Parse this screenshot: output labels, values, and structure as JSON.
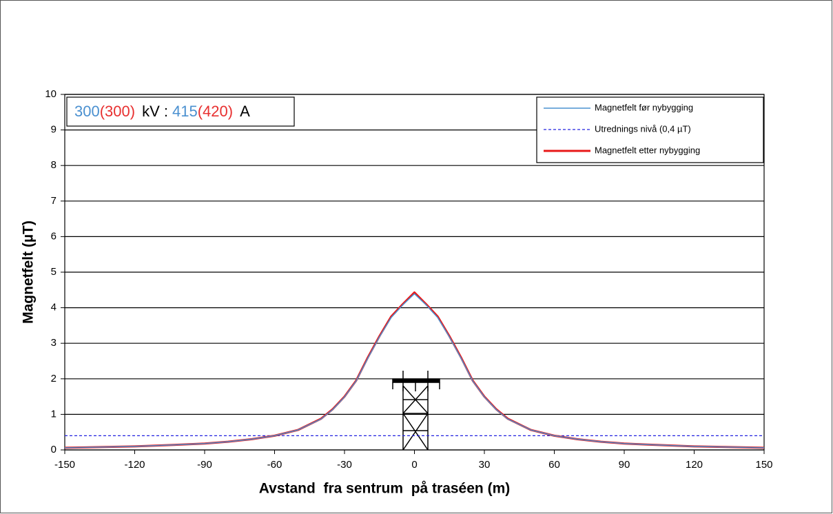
{
  "chart_data": {
    "type": "line",
    "annotation": {
      "parts": [
        {
          "text": "300",
          "color": "#4a90d0"
        },
        {
          "text": "(300)",
          "color": "#e83030"
        },
        {
          "text": "kV :",
          "color": "#000000"
        },
        {
          "text": "415",
          "color": "#4a90d0"
        },
        {
          "text": "(420)",
          "color": "#e83030"
        },
        {
          "text": "A",
          "color": "#000000"
        }
      ]
    },
    "x_label": "Avstand  fra sentrum  på traséen (m)",
    "y_label": "Magnetfelt (µT)",
    "xlim": [
      -150,
      150
    ],
    "xticks": [
      -150,
      -120,
      -90,
      -60,
      -30,
      0,
      30,
      60,
      90,
      120,
      150
    ],
    "ylim": [
      0,
      10
    ],
    "yticks": [
      0,
      1,
      2,
      3,
      4,
      5,
      6,
      7,
      8,
      9,
      10
    ],
    "grid": true,
    "legend": "upper right",
    "series": [
      {
        "name": "Magnetfelt før nybygging",
        "color": "#4a90d0",
        "width": 1.5,
        "dash": false,
        "x": [
          -150,
          -120,
          -100,
          -90,
          -80,
          -70,
          -60,
          -50,
          -40,
          -35,
          -30,
          -25,
          -20,
          -15,
          -10,
          -5,
          0,
          5,
          10,
          15,
          20,
          25,
          30,
          35,
          40,
          50,
          60,
          70,
          80,
          90,
          100,
          120,
          150
        ],
        "values": [
          0.06,
          0.1,
          0.15,
          0.18,
          0.23,
          0.3,
          0.4,
          0.56,
          0.87,
          1.14,
          1.49,
          1.94,
          2.58,
          3.18,
          3.72,
          4.08,
          4.39,
          4.08,
          3.72,
          3.18,
          2.58,
          1.94,
          1.49,
          1.14,
          0.87,
          0.56,
          0.4,
          0.3,
          0.23,
          0.18,
          0.15,
          0.1,
          0.06
        ]
      },
      {
        "name": "Utrednings nivå (0,4 µT)",
        "color": "#2020e0",
        "width": 1.2,
        "dash": true,
        "x": [
          -150,
          150
        ],
        "values": [
          0.4,
          0.4
        ]
      },
      {
        "name": "Magnetfelt etter nybygging",
        "color": "#e81818",
        "width": 3,
        "dash": false,
        "x": [
          -150,
          -120,
          -100,
          -90,
          -80,
          -70,
          -60,
          -50,
          -40,
          -35,
          -30,
          -25,
          -20,
          -15,
          -10,
          -5,
          0,
          5,
          10,
          15,
          20,
          25,
          30,
          35,
          40,
          50,
          60,
          70,
          80,
          90,
          100,
          120,
          150
        ],
        "values": [
          0.06,
          0.1,
          0.15,
          0.18,
          0.23,
          0.3,
          0.4,
          0.56,
          0.88,
          1.15,
          1.5,
          1.95,
          2.6,
          3.2,
          3.75,
          4.1,
          4.43,
          4.1,
          3.75,
          3.2,
          2.6,
          1.95,
          1.5,
          1.15,
          0.88,
          0.56,
          0.4,
          0.3,
          0.23,
          0.18,
          0.15,
          0.1,
          0.06
        ]
      }
    ]
  }
}
